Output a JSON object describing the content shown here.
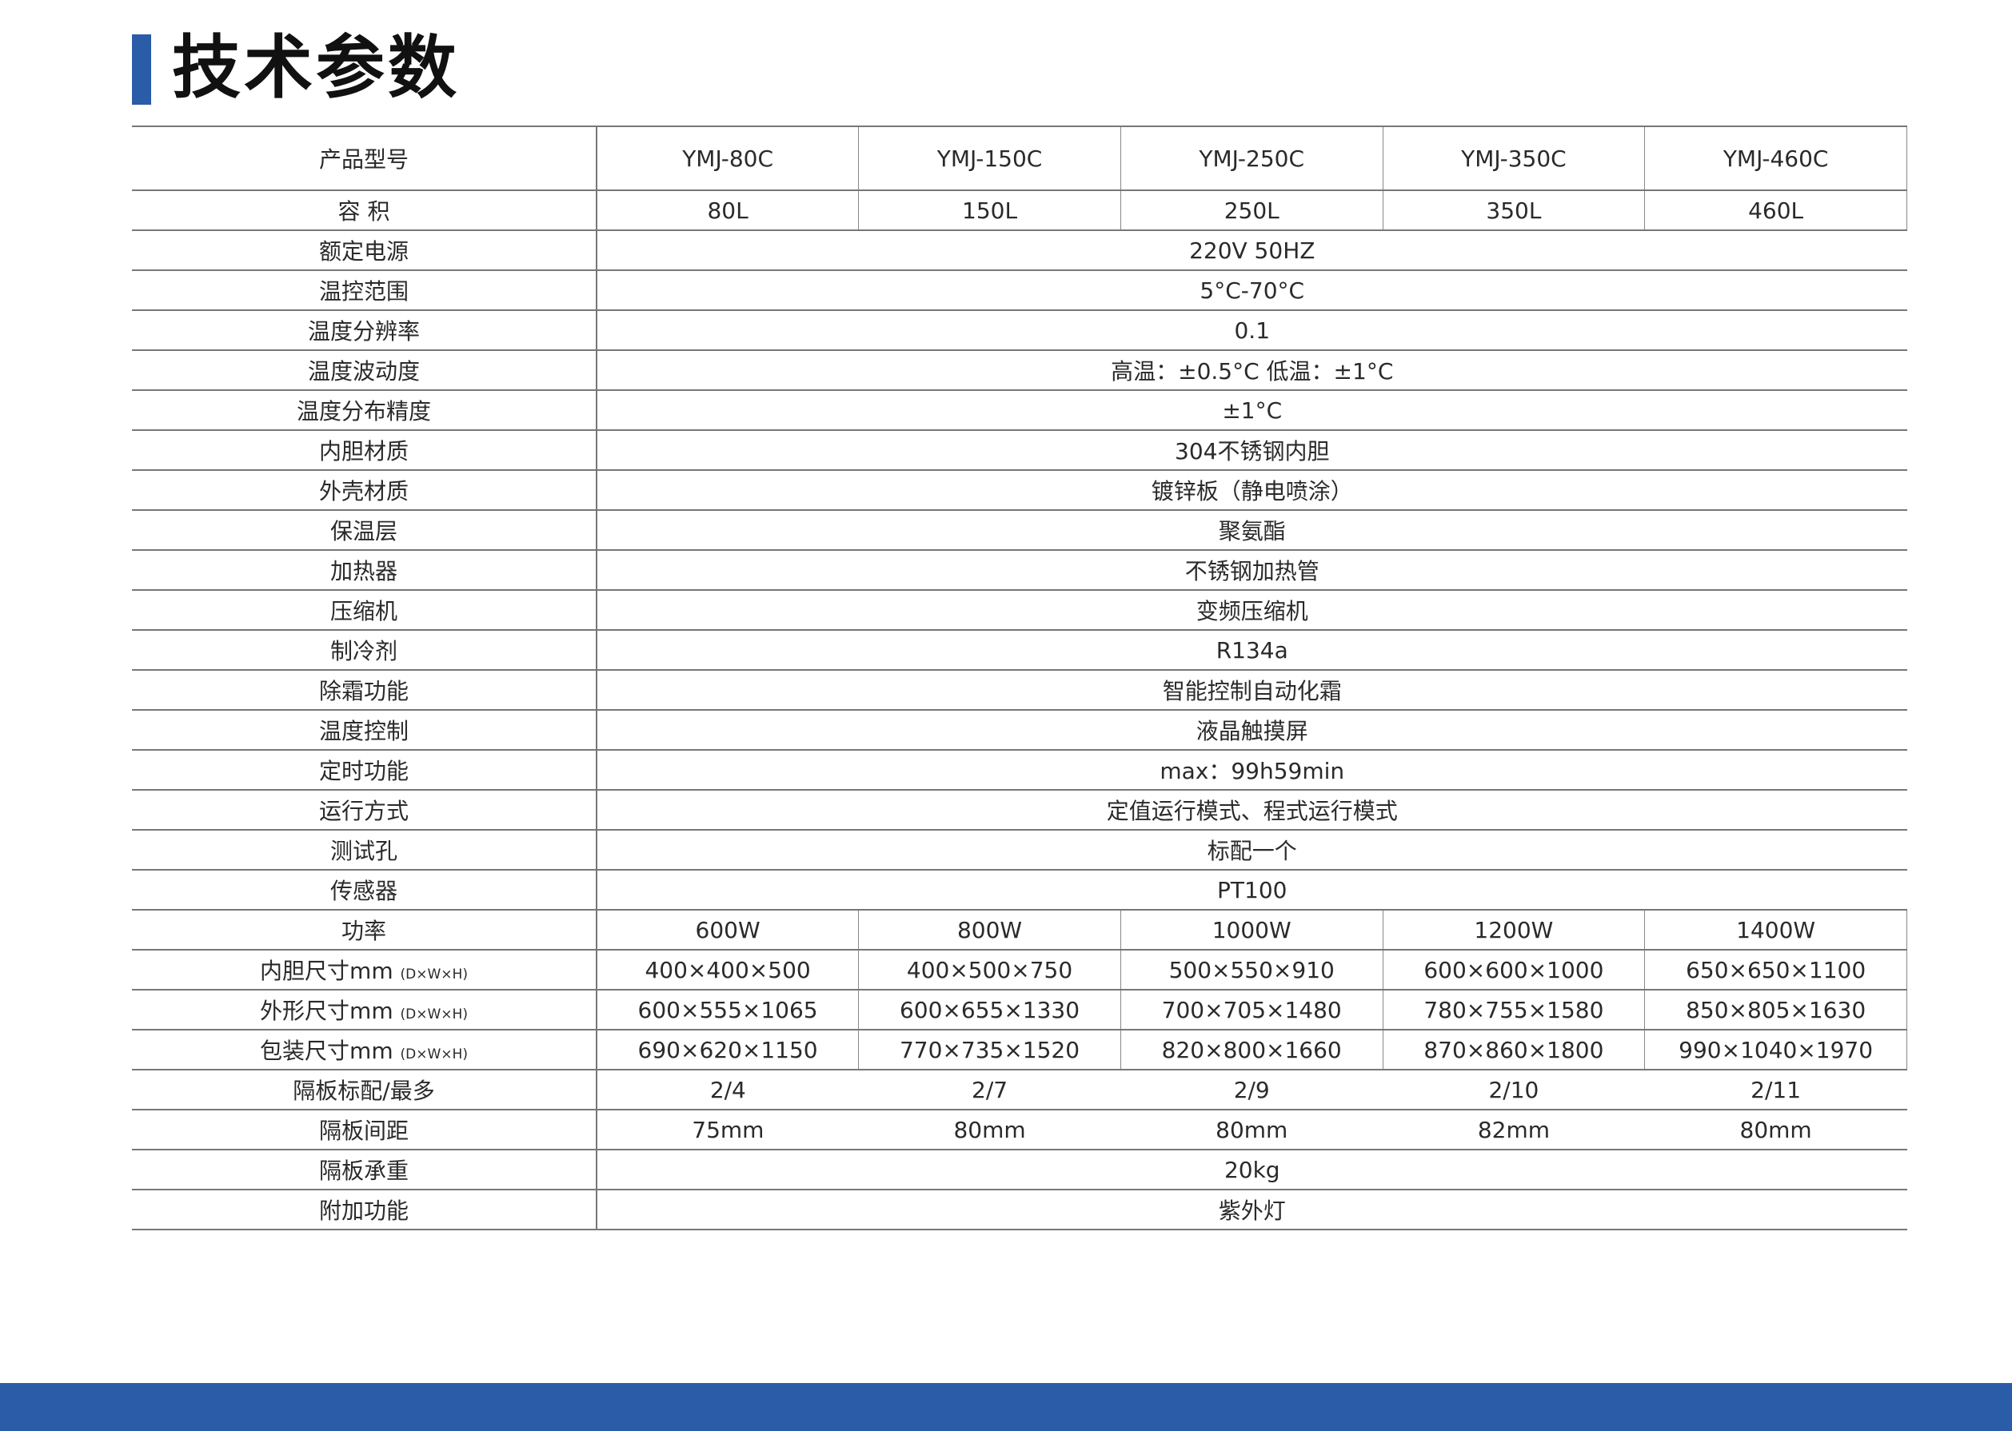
{
  "title": "技术参数",
  "accent_color": "#2a5ca8",
  "header": {
    "label": "产品型号",
    "models": [
      "YMJ-80C",
      "YMJ-150C",
      "YMJ-250C",
      "YMJ-350C",
      "YMJ-460C"
    ]
  },
  "capacity": {
    "label": "容 积",
    "values": [
      "80L",
      "150L",
      "250L",
      "350L",
      "460L"
    ]
  },
  "shared_rows": [
    {
      "label": "额定电源",
      "value": "220V 50HZ"
    },
    {
      "label": "温控范围",
      "value": "5°C-70°C"
    },
    {
      "label": "温度分辨率",
      "value": "0.1"
    },
    {
      "label": "温度波动度",
      "value": "高温：±0.5°C  低温：±1°C"
    },
    {
      "label": "温度分布精度",
      "value": "±1°C"
    },
    {
      "label": "内胆材质",
      "value": "304不锈钢内胆"
    },
    {
      "label": "外壳材质",
      "value": "镀锌板（静电喷涂）"
    },
    {
      "label": "保温层",
      "value": "聚氨酯"
    },
    {
      "label": "加热器",
      "value": "不锈钢加热管"
    },
    {
      "label": "压缩机",
      "value": "变频压缩机"
    },
    {
      "label": "制冷剂",
      "value": "R134a"
    },
    {
      "label": "除霜功能",
      "value": "智能控制自动化霜"
    },
    {
      "label": "温度控制",
      "value": "液晶触摸屏"
    },
    {
      "label": "定时功能",
      "value": "max：99h59min"
    },
    {
      "label": "运行方式",
      "value": "定值运行模式、程式运行模式"
    },
    {
      "label": "测试孔",
      "value": "标配一个"
    },
    {
      "label": "传感器",
      "value": "PT100"
    }
  ],
  "power": {
    "label": "功率",
    "values": [
      "600W",
      "800W",
      "1000W",
      "1200W",
      "1400W"
    ]
  },
  "dim_rows": [
    {
      "label": "内胆尺寸mm",
      "unit": "(D×W×H)",
      "values": [
        "400×400×500",
        "400×500×750",
        "500×550×910",
        "600×600×1000",
        "650×650×1100"
      ]
    },
    {
      "label": "外形尺寸mm",
      "unit": "(D×W×H)",
      "values": [
        "600×555×1065",
        "600×655×1330",
        "700×705×1480",
        "780×755×1580",
        "850×805×1630"
      ]
    },
    {
      "label": "包装尺寸mm",
      "unit": "(D×W×H)",
      "values": [
        "690×620×1150",
        "770×735×1520",
        "820×800×1660",
        "870×860×1800",
        "990×1040×1970"
      ]
    }
  ],
  "shelves": {
    "label": "隔板标配/最多",
    "values": [
      "2/4",
      "2/7",
      "2/9",
      "2/10",
      "2/11"
    ]
  },
  "spacing": {
    "label": "隔板间距",
    "values": [
      "75mm",
      "80mm",
      "80mm",
      "82mm",
      "80mm"
    ]
  },
  "load": {
    "label": "隔板承重",
    "value": "20kg"
  },
  "extra": {
    "label": "附加功能",
    "value": "紫外灯"
  }
}
